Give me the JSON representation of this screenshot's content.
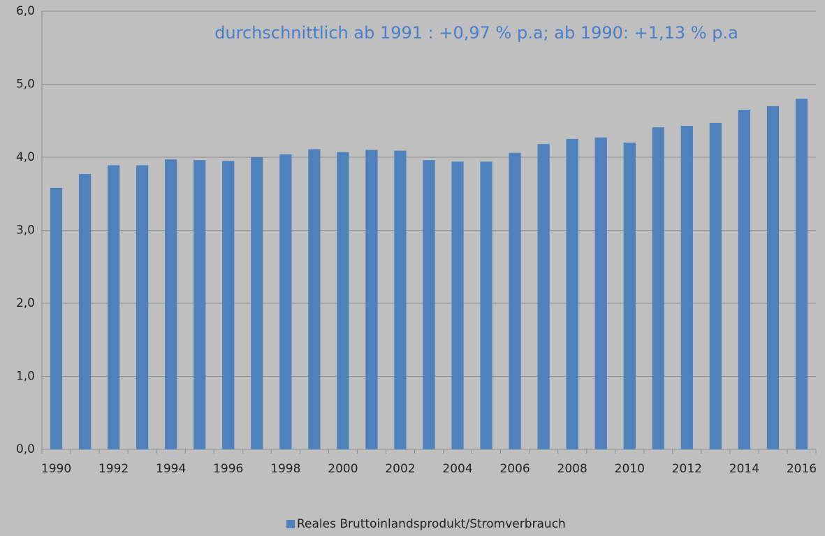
{
  "chart_data": {
    "type": "bar",
    "annotation": "durchschnittlich ab 1991 :  +0,97 % p.a; ab 1990: +1,13 % p.a",
    "categories": [
      "1990",
      null,
      "1992",
      null,
      "1994",
      null,
      "1996",
      null,
      "1998",
      null,
      "2000",
      null,
      "2002",
      null,
      "2004",
      null,
      "2006",
      null,
      "2008",
      null,
      "2010",
      null,
      "2012",
      null,
      "2014",
      null,
      "2016"
    ],
    "series": [
      {
        "name": "Reales Bruttoinlandsprodukt/Stromverbrauch",
        "color": "#4f81bd",
        "values": [
          3.58,
          3.77,
          3.89,
          3.89,
          3.97,
          3.96,
          3.95,
          4.0,
          4.04,
          4.11,
          4.07,
          4.1,
          4.09,
          3.96,
          3.94,
          3.94,
          4.06,
          4.18,
          4.25,
          4.27,
          4.2,
          4.41,
          4.43,
          4.47,
          4.65,
          4.7,
          4.8
        ]
      }
    ],
    "ylim": [
      0,
      6
    ],
    "yticks": [
      {
        "value": 0,
        "label": "0,0"
      },
      {
        "value": 1,
        "label": "1,0"
      },
      {
        "value": 2,
        "label": "2,0"
      },
      {
        "value": 3,
        "label": "3,0"
      },
      {
        "value": 4,
        "label": "4,0"
      },
      {
        "value": 5,
        "label": "5,0"
      },
      {
        "value": 6,
        "label": "6,0"
      }
    ],
    "grid": true,
    "legend": "bottom"
  }
}
